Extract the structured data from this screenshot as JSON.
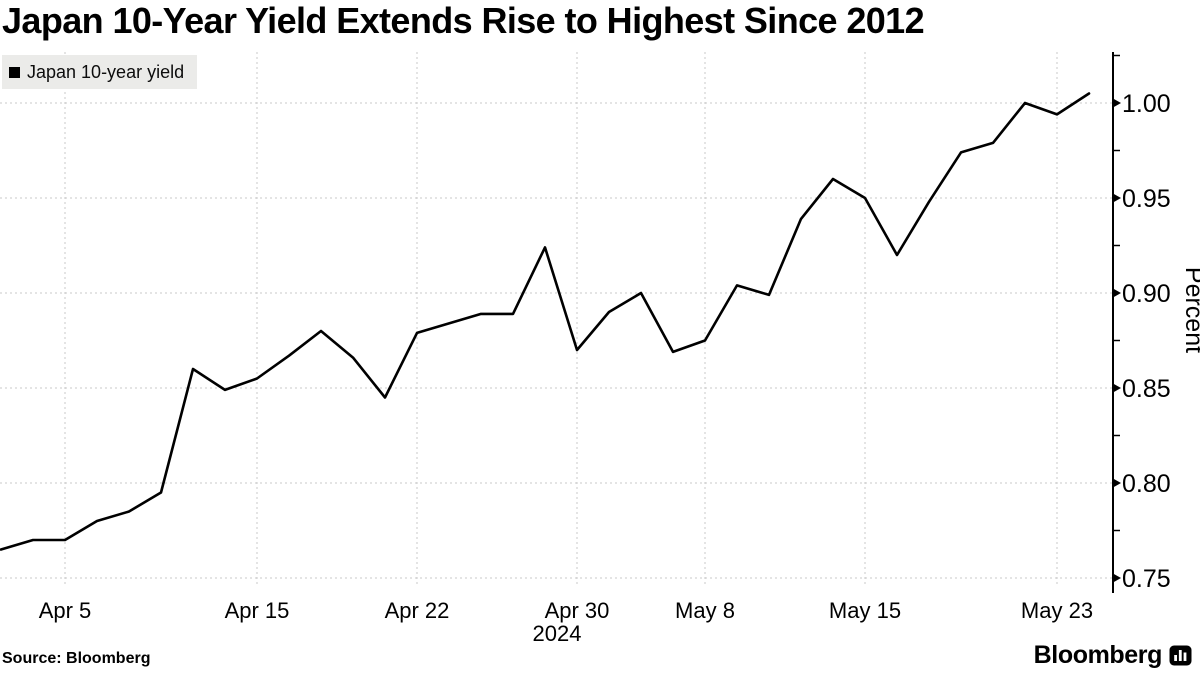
{
  "title": "Japan 10-Year Yield Extends Rise to Highest Since 2012",
  "legend": {
    "label": "Japan 10-year yield",
    "swatch_color": "#000000"
  },
  "source": "Source: Bloomberg",
  "brand": {
    "name": "Bloomberg",
    "icon": "bar-chart-icon"
  },
  "colors": {
    "background": "#ffffff",
    "line": "#000000",
    "grid": "#c9c9c9",
    "axis": "#000000",
    "legend_bg": "#ebebe9",
    "text": "#000000"
  },
  "chart_data": {
    "type": "line",
    "title": "Japan 10-Year Yield Extends Rise to Highest Since 2012",
    "series_name": "Japan 10-year yield",
    "ylabel": "Percent",
    "year_label": "2024",
    "x_year_tick_index": 18,
    "grid": true,
    "legend_position": "top-left",
    "ylim": [
      0.742,
      1.027
    ],
    "y_ticks": [
      0.75,
      0.8,
      0.85,
      0.9,
      0.95,
      1.0
    ],
    "y_tick_labels": [
      "0.75",
      "0.80",
      "0.85",
      "0.90",
      "0.95",
      "1.00"
    ],
    "x_tick_labels": [
      "Apr 5",
      "Apr 15",
      "Apr 22",
      "Apr 30",
      "May 8",
      "May 15",
      "May 23"
    ],
    "x_tick_indices": [
      2,
      8,
      13,
      18,
      22,
      27,
      33
    ],
    "dates": [
      "Apr 3",
      "Apr 4",
      "Apr 5",
      "Apr 8",
      "Apr 9",
      "Apr 10",
      "Apr 11",
      "Apr 12",
      "Apr 15",
      "Apr 16",
      "Apr 17",
      "Apr 18",
      "Apr 19",
      "Apr 22",
      "Apr 23",
      "Apr 24",
      "Apr 25",
      "Apr 26",
      "Apr 30",
      "May 1",
      "May 2",
      "May 7",
      "May 8",
      "May 9",
      "May 10",
      "May 13",
      "May 14",
      "May 15",
      "May 16",
      "May 17",
      "May 20",
      "May 21",
      "May 22",
      "May 23",
      "May 24"
    ],
    "values": [
      0.765,
      0.77,
      0.77,
      0.78,
      0.785,
      0.795,
      0.86,
      0.849,
      0.855,
      0.867,
      0.88,
      0.866,
      0.845,
      0.879,
      0.884,
      0.889,
      0.889,
      0.924,
      0.87,
      0.89,
      0.9,
      0.869,
      0.875,
      0.904,
      0.899,
      0.939,
      0.96,
      0.95,
      0.92,
      0.948,
      0.974,
      0.979,
      1.0,
      0.994,
      1.005
    ]
  }
}
